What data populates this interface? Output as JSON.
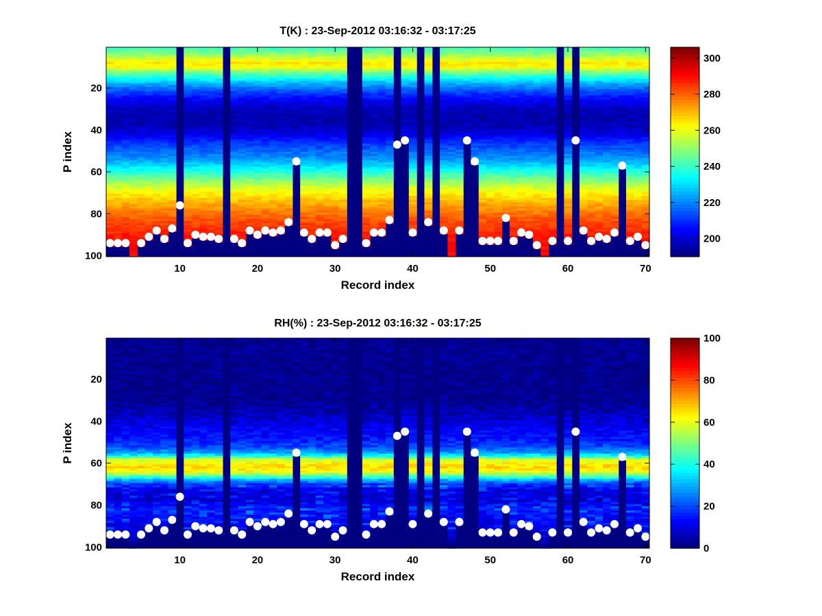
{
  "chart_data": [
    {
      "type": "heatmap",
      "title": "T(K) : 23-Sep-2012 03:16:32 - 03:17:25",
      "xlabel": "Record index",
      "ylabel": "P index",
      "xlim": [
        1,
        70
      ],
      "ylim": [
        1,
        100
      ],
      "y_reversed": true,
      "x_ticks": [
        10,
        20,
        30,
        40,
        50,
        60,
        70
      ],
      "y_ticks": [
        20,
        40,
        60,
        80,
        100
      ],
      "colorbar": {
        "range": [
          190,
          306
        ],
        "ticks": [
          200,
          220,
          240,
          260,
          280,
          300
        ],
        "colormap": "jet"
      },
      "profile": [
        [
          1,
          241
        ],
        [
          4,
          250
        ],
        [
          8,
          265
        ],
        [
          10,
          262
        ],
        [
          12,
          250
        ],
        [
          15,
          236
        ],
        [
          18,
          224
        ],
        [
          22,
          212
        ],
        [
          26,
          203
        ],
        [
          30,
          197
        ],
        [
          34,
          195
        ],
        [
          38,
          196
        ],
        [
          42,
          201
        ],
        [
          46,
          210
        ],
        [
          50,
          216
        ],
        [
          54,
          222
        ],
        [
          58,
          232
        ],
        [
          62,
          243
        ],
        [
          66,
          254
        ],
        [
          70,
          263
        ],
        [
          74,
          270
        ],
        [
          78,
          276
        ],
        [
          82,
          281
        ],
        [
          86,
          285
        ],
        [
          90,
          288
        ],
        [
          93,
          290
        ],
        [
          96,
          291
        ],
        [
          100,
          292
        ]
      ],
      "marker_points": [
        [
          1,
          94
        ],
        [
          2,
          94
        ],
        [
          3,
          94
        ],
        [
          5,
          94
        ],
        [
          6,
          91
        ],
        [
          7,
          88
        ],
        [
          8,
          92
        ],
        [
          9,
          87
        ],
        [
          10,
          76
        ],
        [
          11,
          94
        ],
        [
          12,
          90
        ],
        [
          13,
          91
        ],
        [
          14,
          91
        ],
        [
          15,
          92
        ],
        [
          17,
          92
        ],
        [
          18,
          94
        ],
        [
          19,
          88
        ],
        [
          20,
          90
        ],
        [
          21,
          88
        ],
        [
          22,
          89
        ],
        [
          23,
          88
        ],
        [
          24,
          84
        ],
        [
          25,
          55
        ],
        [
          26,
          89
        ],
        [
          27,
          92
        ],
        [
          28,
          89
        ],
        [
          29,
          89
        ],
        [
          30,
          95
        ],
        [
          31,
          92
        ],
        [
          34,
          94
        ],
        [
          35,
          89
        ],
        [
          36,
          89
        ],
        [
          37,
          83
        ],
        [
          38,
          47
        ],
        [
          39,
          45
        ],
        [
          40,
          89
        ],
        [
          42,
          84
        ],
        [
          44,
          88
        ],
        [
          46,
          88
        ],
        [
          47,
          45
        ],
        [
          48,
          55
        ],
        [
          49,
          93
        ],
        [
          50,
          93
        ],
        [
          51,
          93
        ],
        [
          52,
          82
        ],
        [
          53,
          93
        ],
        [
          54,
          89
        ],
        [
          55,
          90
        ],
        [
          56,
          95
        ],
        [
          58,
          93
        ],
        [
          60,
          93
        ],
        [
          61,
          45
        ],
        [
          62,
          88
        ],
        [
          63,
          93
        ],
        [
          64,
          91
        ],
        [
          65,
          92
        ],
        [
          66,
          89
        ],
        [
          67,
          57
        ],
        [
          68,
          93
        ],
        [
          69,
          91
        ],
        [
          70,
          95
        ]
      ],
      "missing_records": [
        16,
        32,
        33,
        41,
        43,
        59
      ],
      "partial_records": [
        [
          38,
          62
        ],
        [
          61,
          58
        ],
        [
          10,
          78
        ]
      ]
    },
    {
      "type": "heatmap",
      "title": "RH(%) : 23-Sep-2012 03:16:32 - 03:17:25",
      "xlabel": "Record index",
      "ylabel": "P index",
      "xlim": [
        1,
        70
      ],
      "ylim": [
        1,
        100
      ],
      "y_reversed": true,
      "x_ticks": [
        10,
        20,
        30,
        40,
        50,
        60,
        70
      ],
      "y_ticks": [
        20,
        40,
        60,
        80,
        100
      ],
      "colorbar": {
        "range": [
          0,
          100
        ],
        "ticks": [
          0,
          20,
          40,
          60,
          80,
          100
        ],
        "colormap": "jet"
      },
      "profile": [
        [
          1,
          1
        ],
        [
          30,
          1
        ],
        [
          36,
          5
        ],
        [
          42,
          10
        ],
        [
          48,
          14
        ],
        [
          52,
          19
        ],
        [
          55,
          28
        ],
        [
          57,
          42
        ],
        [
          58,
          56
        ],
        [
          60,
          63
        ],
        [
          62,
          66
        ],
        [
          64,
          62
        ],
        [
          66,
          48
        ],
        [
          68,
          30
        ],
        [
          70,
          18
        ],
        [
          73,
          9
        ],
        [
          78,
          8
        ],
        [
          82,
          14
        ],
        [
          86,
          12
        ],
        [
          90,
          9
        ],
        [
          94,
          7
        ],
        [
          97,
          4
        ],
        [
          100,
          2
        ]
      ],
      "marker_points": [
        [
          1,
          94
        ],
        [
          2,
          94
        ],
        [
          3,
          94
        ],
        [
          5,
          94
        ],
        [
          6,
          91
        ],
        [
          7,
          88
        ],
        [
          8,
          92
        ],
        [
          9,
          87
        ],
        [
          10,
          76
        ],
        [
          11,
          94
        ],
        [
          12,
          90
        ],
        [
          13,
          91
        ],
        [
          14,
          91
        ],
        [
          15,
          92
        ],
        [
          17,
          92
        ],
        [
          18,
          94
        ],
        [
          19,
          88
        ],
        [
          20,
          90
        ],
        [
          21,
          88
        ],
        [
          22,
          89
        ],
        [
          23,
          88
        ],
        [
          24,
          84
        ],
        [
          25,
          55
        ],
        [
          26,
          89
        ],
        [
          27,
          92
        ],
        [
          28,
          89
        ],
        [
          29,
          89
        ],
        [
          30,
          95
        ],
        [
          31,
          92
        ],
        [
          34,
          94
        ],
        [
          35,
          89
        ],
        [
          36,
          89
        ],
        [
          37,
          83
        ],
        [
          38,
          47
        ],
        [
          39,
          45
        ],
        [
          40,
          89
        ],
        [
          42,
          84
        ],
        [
          44,
          88
        ],
        [
          46,
          88
        ],
        [
          47,
          45
        ],
        [
          48,
          55
        ],
        [
          49,
          93
        ],
        [
          50,
          93
        ],
        [
          51,
          93
        ],
        [
          52,
          82
        ],
        [
          53,
          93
        ],
        [
          54,
          89
        ],
        [
          55,
          90
        ],
        [
          56,
          95
        ],
        [
          58,
          93
        ],
        [
          60,
          93
        ],
        [
          61,
          45
        ],
        [
          62,
          88
        ],
        [
          63,
          93
        ],
        [
          64,
          91
        ],
        [
          65,
          92
        ],
        [
          66,
          89
        ],
        [
          67,
          57
        ],
        [
          68,
          93
        ],
        [
          69,
          91
        ],
        [
          70,
          95
        ]
      ],
      "missing_records": [
        16,
        32,
        33,
        41,
        43,
        59
      ],
      "partial_records": [
        [
          38,
          62
        ],
        [
          61,
          58
        ],
        [
          10,
          78
        ]
      ]
    }
  ]
}
